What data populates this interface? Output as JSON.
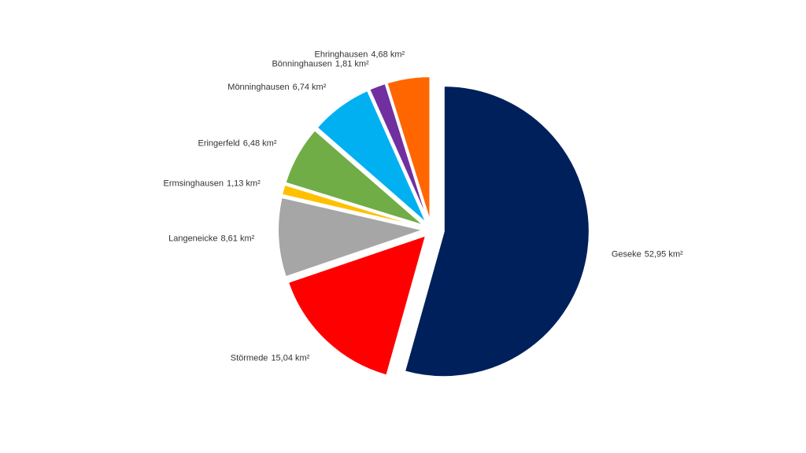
{
  "chart_data": {
    "type": "pie",
    "categories": [
      "Geseke",
      "Störmede",
      "Langeneicke",
      "Ermsinghausen",
      "Eringerfeld",
      "Mönninghausen",
      "Bönninghausen",
      "Ehringhausen"
    ],
    "values": [
      52.95,
      15.04,
      8.61,
      1.13,
      6.48,
      6.74,
      1.81,
      4.68
    ],
    "value_labels": [
      "52,95 km²",
      "15,04 km²",
      "8,61 km²",
      "1,13 km²",
      "6,48 km²",
      "6,74 km²",
      "1,81 km²",
      "4,68 km²"
    ],
    "colors": [
      "#00205b",
      "#ff0000",
      "#a6a6a6",
      "#ffc000",
      "#70ad47",
      "#00b0f0",
      "#7030a0",
      "#ff6600"
    ]
  }
}
